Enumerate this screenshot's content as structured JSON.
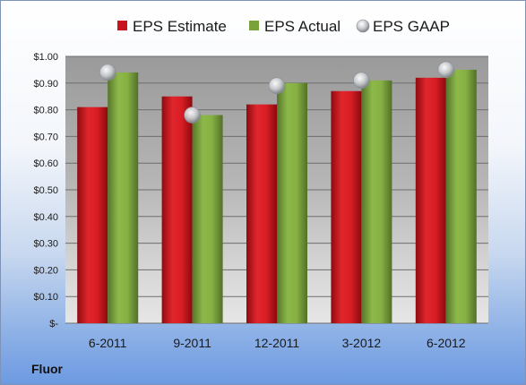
{
  "company": "Fluor",
  "chart_data": {
    "type": "bar",
    "categories": [
      "6-2011",
      "9-2011",
      "12-2011",
      "3-2012",
      "6-2012"
    ],
    "series": [
      {
        "name": "EPS Estimate",
        "kind": "bar",
        "color": "#c8141c",
        "values": [
          0.81,
          0.85,
          0.82,
          0.87,
          0.92
        ]
      },
      {
        "name": "EPS Actual",
        "kind": "bar",
        "color": "#7aa23a",
        "values": [
          0.94,
          0.78,
          0.9,
          0.91,
          0.95
        ]
      },
      {
        "name": "EPS GAAP",
        "kind": "marker",
        "color": "#b8bcc2",
        "values": [
          0.94,
          0.78,
          0.89,
          0.91,
          0.95
        ]
      }
    ],
    "ylim": [
      0,
      1.0
    ],
    "yticks": [
      0,
      0.1,
      0.2,
      0.3,
      0.4,
      0.5,
      0.6,
      0.7,
      0.8,
      0.9,
      1.0
    ],
    "ytick_labels": [
      "$-",
      "$0.10",
      "$0.20",
      "$0.30",
      "$0.40",
      "$0.50",
      "$0.60",
      "$0.70",
      "$0.80",
      "$0.90",
      "$1.00"
    ],
    "grid": true,
    "legend_position": "top"
  }
}
